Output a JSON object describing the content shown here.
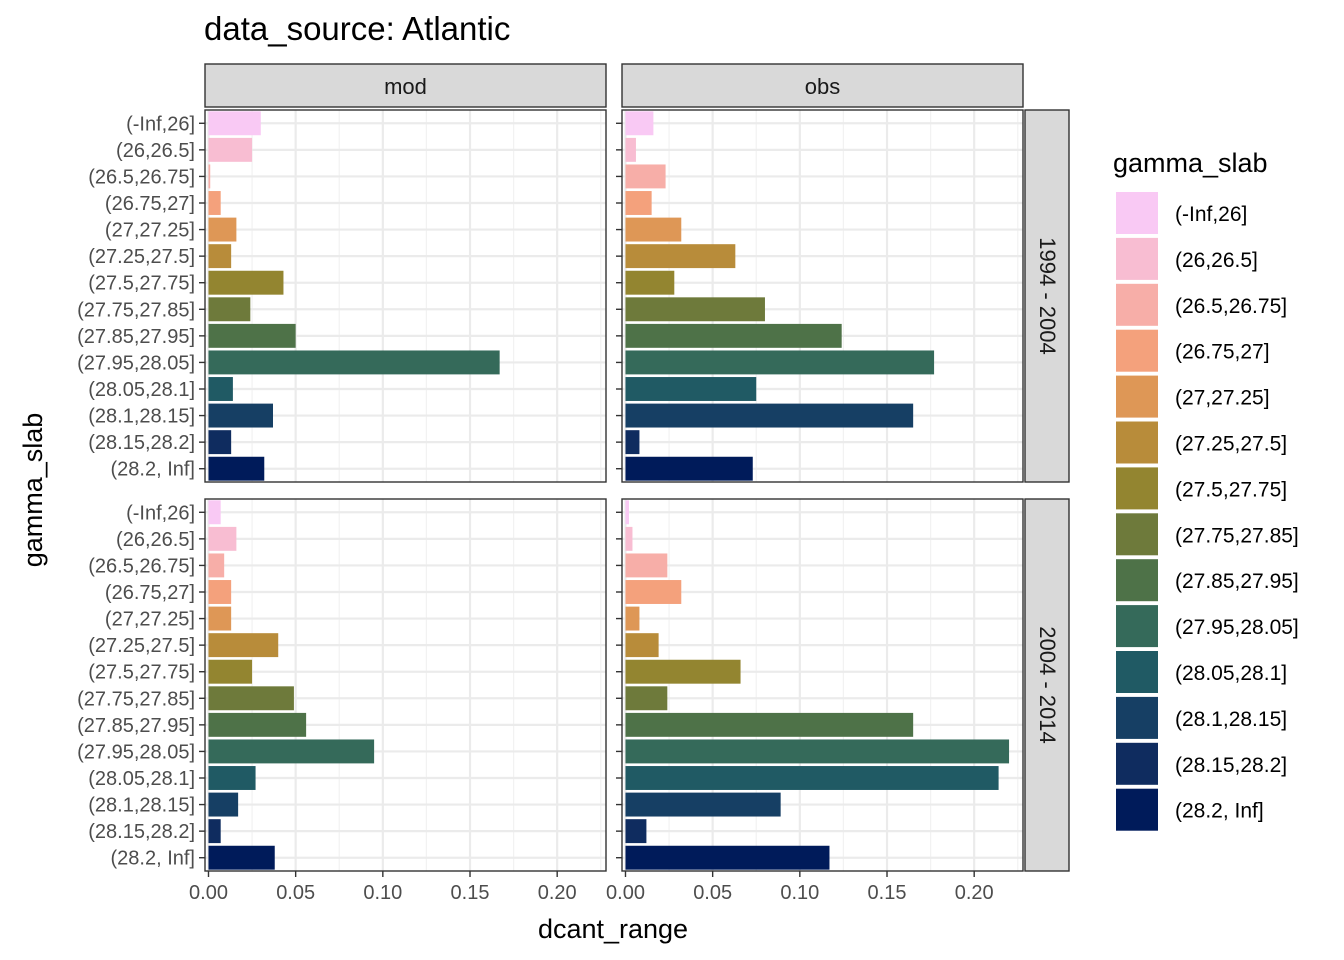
{
  "chart_data": {
    "type": "bar",
    "orientation": "horizontal",
    "title": "data_source: Atlantic",
    "xlabel": "dcant_range",
    "ylabel": "gamma_slab",
    "xlim": [
      -0.002,
      0.228
    ],
    "x_ticks": [
      "0.00",
      "0.05",
      "0.10",
      "0.15",
      "0.20"
    ],
    "x_tick_values": [
      0,
      0.05,
      0.1,
      0.15,
      0.2
    ],
    "grid": true,
    "facet_cols": [
      "mod",
      "obs"
    ],
    "facet_rows": [
      "1994 - 2004",
      "2004 - 2014"
    ],
    "categories": [
      "(-Inf,26]",
      "(26,26.5]",
      "(26.5,26.75]",
      "(26.75,27]",
      "(27,27.25]",
      "(27.25,27.5]",
      "(27.5,27.75]",
      "(27.75,27.85]",
      "(27.85,27.95]",
      "(27.95,28.05]",
      "(28.05,28.1]",
      "(28.1,28.15]",
      "(28.15,28.2]",
      "(28.2, Inf]"
    ],
    "colors": [
      "#F9C9F4",
      "#F8BDD2",
      "#F7AEA8",
      "#F4A17C",
      "#DE9756",
      "#B88C3A",
      "#938530",
      "#6E7A3B",
      "#4E7248",
      "#356A5A",
      "#205A64",
      "#163F64",
      "#0F2C5F",
      "#001B5A"
    ],
    "legend": {
      "title": "gamma_slab",
      "position": "right"
    },
    "panels": [
      {
        "row": "1994 - 2004",
        "col": "mod",
        "values": [
          0.03,
          0.025,
          0.001,
          0.007,
          0.016,
          0.013,
          0.043,
          0.024,
          0.05,
          0.167,
          0.014,
          0.037,
          0.013,
          0.032
        ]
      },
      {
        "row": "1994 - 2004",
        "col": "obs",
        "values": [
          0.016,
          0.006,
          0.023,
          0.015,
          0.032,
          0.063,
          0.028,
          0.08,
          0.124,
          0.177,
          0.075,
          0.165,
          0.008,
          0.073
        ]
      },
      {
        "row": "2004 - 2014",
        "col": "mod",
        "values": [
          0.007,
          0.016,
          0.009,
          0.013,
          0.013,
          0.04,
          0.025,
          0.049,
          0.056,
          0.095,
          0.027,
          0.017,
          0.007,
          0.038
        ]
      },
      {
        "row": "2004 - 2014",
        "col": "obs",
        "values": [
          0.002,
          0.004,
          0.024,
          0.032,
          0.008,
          0.019,
          0.066,
          0.024,
          0.165,
          0.22,
          0.214,
          0.089,
          0.012,
          0.117
        ]
      }
    ]
  }
}
